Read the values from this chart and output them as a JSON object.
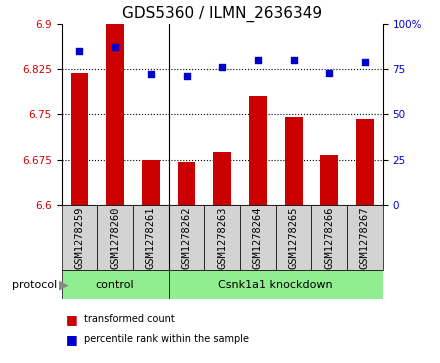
{
  "title": "GDS5360 / ILMN_2636349",
  "samples": [
    "GSM1278259",
    "GSM1278260",
    "GSM1278261",
    "GSM1278262",
    "GSM1278263",
    "GSM1278264",
    "GSM1278265",
    "GSM1278266",
    "GSM1278267"
  ],
  "transformed_count": [
    6.818,
    6.9,
    6.675,
    6.671,
    6.688,
    6.78,
    6.745,
    6.682,
    6.742
  ],
  "percentile_rank": [
    85,
    87,
    72,
    71,
    76,
    80,
    80,
    73,
    79
  ],
  "group_boundary": 3,
  "group_labels": [
    "control",
    "Csnk1a1 knockdown"
  ],
  "ylim_left": [
    6.6,
    6.9
  ],
  "ylim_right": [
    0,
    100
  ],
  "yticks_left": [
    6.6,
    6.675,
    6.75,
    6.825,
    6.9
  ],
  "yticks_right": [
    0,
    25,
    50,
    75,
    100
  ],
  "ytick_labels_right": [
    "0",
    "25",
    "50",
    "75",
    "100%"
  ],
  "bar_color": "#cc0000",
  "dot_color": "#0000cc",
  "bar_width": 0.5,
  "protocol_label": "protocol",
  "legend_items": [
    {
      "color": "#cc0000",
      "label": "transformed count"
    },
    {
      "color": "#0000cc",
      "label": "percentile rank within the sample"
    }
  ],
  "tick_label_color_left": "#cc0000",
  "tick_label_color_right": "#0000cc",
  "title_fontsize": 11,
  "tick_fontsize": 7.5,
  "sample_box_color": "#d3d3d3",
  "group_color": "#90ee90"
}
